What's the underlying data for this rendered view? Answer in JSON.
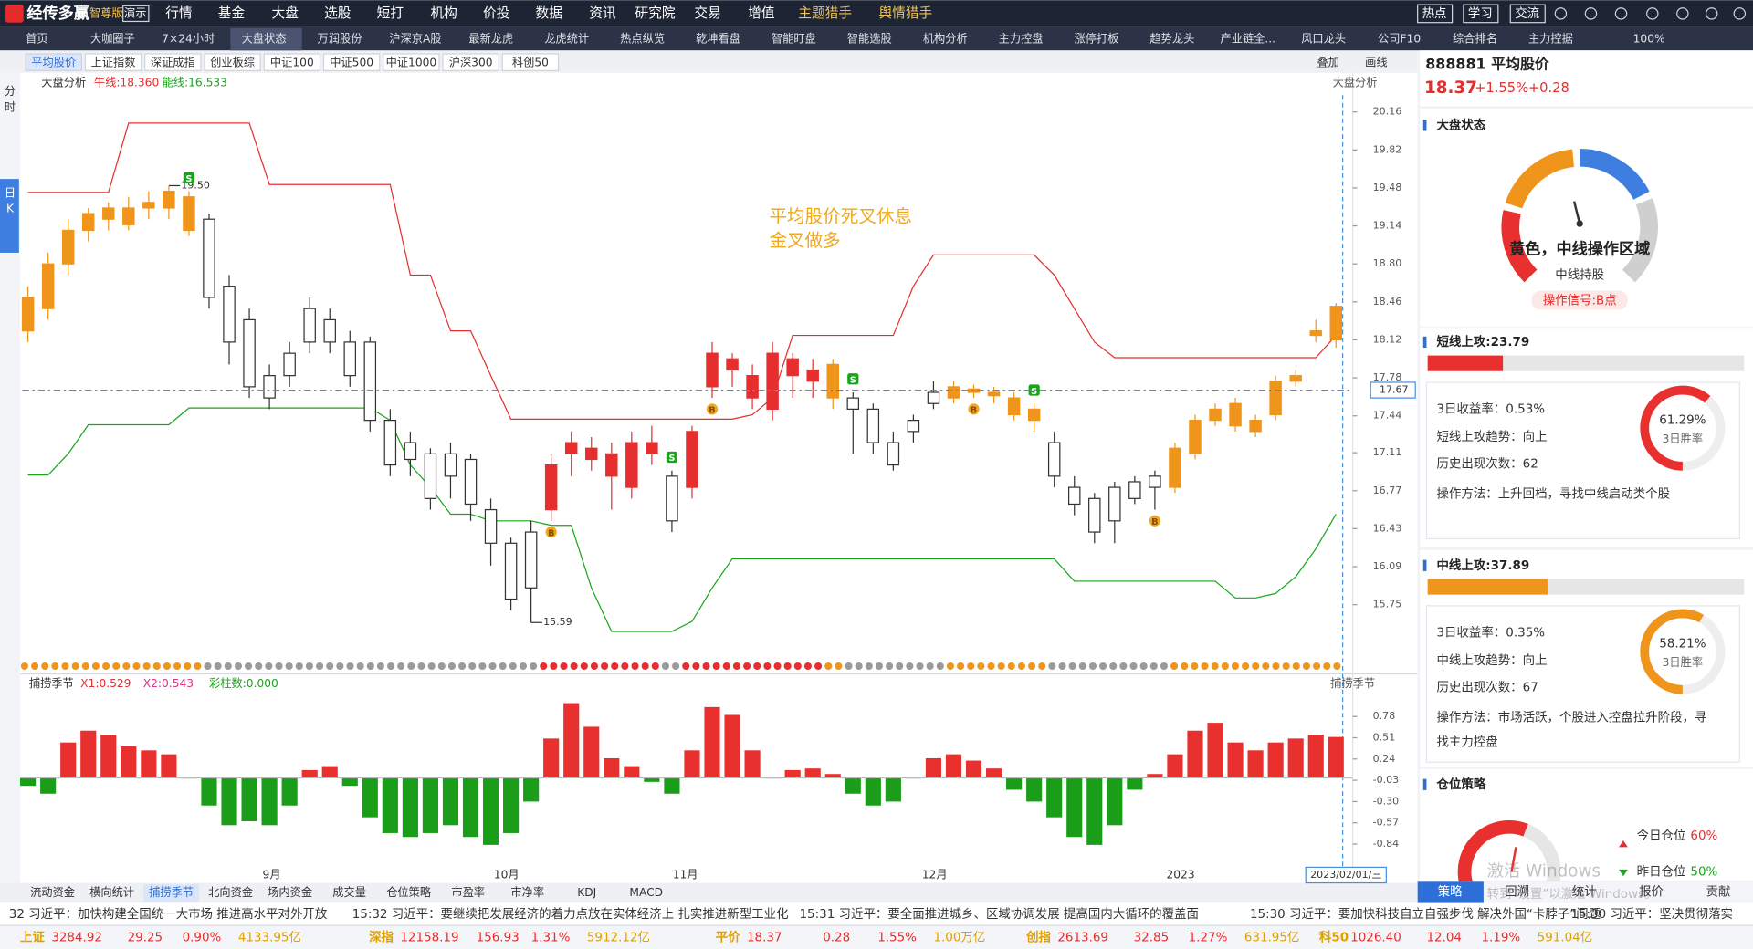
{
  "top_menu": {
    "logo": "经传多赢",
    "edition": "智尊版",
    "demo": "演示",
    "items": [
      "行情",
      "基金",
      "大盘",
      "选股",
      "短打",
      "机构",
      "价投",
      "数据",
      "资讯",
      "研究院",
      "交易",
      "增值",
      "主题猎手",
      "舆情猎手"
    ],
    "right": [
      "热点",
      "学习",
      "交流"
    ]
  },
  "nav_tabs": {
    "items": [
      "首页",
      "大咖圈子",
      "7×24小时",
      "大盘状态",
      "万润股份",
      "沪深京A股",
      "最新龙虎",
      "龙虎统计",
      "热点纵览",
      "乾坤看盘",
      "智能盯盘",
      "智能选股",
      "机构分析",
      "主力控盘",
      "涨停打板",
      "趋势龙头",
      "产业链全...",
      "风口龙头",
      "公司F10",
      "综合排名",
      "主力控据"
    ],
    "zoom": "100%"
  },
  "index_tabs": {
    "items": [
      "平均股价",
      "上证指数",
      "深证成指",
      "创业板综",
      "中证100",
      "中证500",
      "中证1000",
      "沪深300",
      "科创50"
    ],
    "overlay": "叠加",
    "draw": "画线"
  },
  "side_tabs": [
    "分时",
    "日K"
  ],
  "kline": {
    "title": "大盘分析",
    "bull": "牛线:18.360",
    "bear": "能线:16.533",
    "corner": "大盘分析",
    "annotation": [
      "平均股价死叉休息",
      "金叉做多"
    ],
    "ylim": [
      15.41,
      20.31
    ],
    "yticks": [
      20.16,
      19.82,
      19.48,
      19.14,
      {
        "value": 18.8,
        "label": "18.80"
      },
      18.46,
      18.12,
      17.78,
      17.44,
      17.11,
      16.77,
      16.43,
      16.09,
      15.75
    ],
    "current_price": 17.67,
    "high": {
      "value": 19.5,
      "label": "19.50"
    },
    "low": 15.59,
    "palette": {
      "o": "#f0951c",
      "r": "#e62e2e",
      "w": "#ffffff"
    },
    "candles": [
      [
        18.2,
        18.6,
        18.1,
        18.5,
        "o"
      ],
      [
        18.4,
        18.9,
        18.3,
        18.8,
        "o"
      ],
      [
        18.8,
        19.2,
        18.7,
        19.1,
        "o"
      ],
      [
        19.1,
        19.3,
        19.0,
        19.25,
        "o"
      ],
      [
        19.3,
        19.35,
        19.1,
        19.2,
        "o"
      ],
      [
        19.15,
        19.4,
        19.1,
        19.3,
        "o"
      ],
      [
        19.3,
        19.45,
        19.2,
        19.35,
        "o"
      ],
      [
        19.3,
        19.5,
        19.2,
        19.45,
        "o"
      ],
      [
        19.4,
        19.45,
        19.05,
        19.1,
        "o"
      ],
      [
        19.2,
        19.25,
        18.4,
        18.5,
        "w"
      ],
      [
        18.6,
        18.7,
        17.9,
        18.1,
        "w"
      ],
      [
        18.3,
        18.4,
        17.6,
        17.7,
        "w"
      ],
      [
        17.8,
        17.9,
        17.5,
        17.6,
        "w"
      ],
      [
        17.8,
        18.1,
        17.7,
        18.0,
        "w"
      ],
      [
        18.1,
        18.5,
        18.0,
        18.4,
        "w"
      ],
      [
        18.3,
        18.4,
        18.0,
        18.1,
        "w"
      ],
      [
        18.1,
        18.2,
        17.7,
        17.8,
        "w"
      ],
      [
        18.1,
        18.15,
        17.3,
        17.4,
        "w"
      ],
      [
        17.4,
        17.5,
        16.9,
        17.0,
        "w"
      ],
      [
        17.2,
        17.3,
        16.9,
        17.05,
        "w"
      ],
      [
        17.1,
        17.15,
        16.6,
        16.7,
        "w"
      ],
      [
        16.9,
        17.2,
        16.7,
        17.1,
        "w"
      ],
      [
        17.05,
        17.1,
        16.5,
        16.65,
        "w"
      ],
      [
        16.6,
        16.7,
        16.1,
        16.3,
        "w"
      ],
      [
        16.3,
        16.35,
        15.7,
        15.8,
        "w"
      ],
      [
        15.9,
        16.5,
        15.59,
        16.4,
        "w"
      ],
      [
        16.6,
        17.1,
        16.5,
        17.0,
        "r"
      ],
      [
        17.2,
        17.3,
        16.9,
        17.1,
        "r"
      ],
      [
        17.05,
        17.25,
        16.95,
        17.15,
        "r"
      ],
      [
        17.1,
        17.2,
        16.6,
        16.9,
        "r"
      ],
      [
        16.8,
        17.3,
        16.7,
        17.2,
        "r"
      ],
      [
        17.2,
        17.35,
        17.0,
        17.1,
        "r"
      ],
      [
        16.9,
        16.95,
        16.4,
        16.5,
        "w"
      ],
      [
        16.8,
        17.35,
        16.7,
        17.3,
        "r"
      ],
      [
        17.7,
        18.1,
        17.6,
        18.0,
        "r"
      ],
      [
        17.95,
        18.0,
        17.7,
        17.85,
        "r"
      ],
      [
        17.6,
        17.9,
        17.5,
        17.8,
        "r"
      ],
      [
        17.5,
        18.1,
        17.4,
        18.0,
        "r"
      ],
      [
        17.95,
        18.0,
        17.6,
        17.8,
        "r"
      ],
      [
        17.75,
        17.95,
        17.6,
        17.85,
        "r"
      ],
      [
        17.9,
        17.95,
        17.5,
        17.6,
        "o"
      ],
      [
        17.6,
        17.65,
        17.1,
        17.5,
        "w"
      ],
      [
        17.5,
        17.55,
        17.1,
        17.2,
        "w"
      ],
      [
        17.0,
        17.3,
        16.95,
        17.2,
        "w"
      ],
      [
        17.3,
        17.45,
        17.2,
        17.4,
        "w"
      ],
      [
        17.55,
        17.75,
        17.5,
        17.65,
        "w"
      ],
      [
        17.7,
        17.75,
        17.55,
        17.6,
        "o"
      ],
      [
        17.65,
        17.72,
        17.6,
        17.68,
        "o"
      ],
      [
        17.65,
        17.7,
        17.55,
        17.62,
        "o"
      ],
      [
        17.6,
        17.65,
        17.4,
        17.45,
        "o"
      ],
      [
        17.5,
        17.55,
        17.3,
        17.4,
        "o"
      ],
      [
        17.2,
        17.3,
        16.8,
        16.9,
        "w"
      ],
      [
        16.8,
        16.9,
        16.55,
        16.65,
        "w"
      ],
      [
        16.7,
        16.75,
        16.3,
        16.4,
        "w"
      ],
      [
        16.5,
        16.85,
        16.3,
        16.8,
        "w"
      ],
      [
        16.85,
        16.9,
        16.65,
        16.7,
        "w"
      ],
      [
        16.8,
        16.95,
        16.6,
        16.9,
        "w"
      ],
      [
        16.8,
        17.2,
        16.75,
        17.15,
        "o"
      ],
      [
        17.1,
        17.45,
        17.05,
        17.4,
        "o"
      ],
      [
        17.4,
        17.55,
        17.35,
        17.5,
        "o"
      ],
      [
        17.55,
        17.6,
        17.3,
        17.35,
        "o"
      ],
      [
        17.4,
        17.45,
        17.25,
        17.3,
        "o"
      ],
      [
        17.45,
        17.8,
        17.4,
        17.75,
        "o"
      ],
      [
        17.75,
        17.85,
        17.7,
        17.8,
        "o"
      ],
      [
        18.16,
        18.3,
        18.1,
        18.2,
        "o"
      ],
      [
        18.42,
        18.45,
        18.05,
        18.12,
        "o"
      ]
    ],
    "bull_line": [
      19.44,
      19.44,
      19.44,
      19.44,
      19.44,
      20.06,
      20.06,
      20.06,
      20.06,
      20.06,
      20.06,
      20.06,
      19.51,
      19.51,
      19.51,
      19.51,
      19.51,
      19.51,
      19.51,
      18.7,
      18.7,
      18.2,
      18.2,
      17.8,
      17.41,
      17.41,
      17.41,
      17.41,
      17.41,
      17.41,
      17.41,
      17.41,
      17.41,
      17.41,
      17.41,
      17.41,
      17.45,
      17.6,
      18.16,
      18.16,
      18.16,
      18.16,
      18.16,
      18.16,
      18.6,
      18.88,
      18.88,
      18.88,
      18.88,
      18.88,
      18.88,
      18.7,
      18.4,
      18.1,
      17.96,
      17.96,
      17.96,
      17.96,
      17.96,
      17.96,
      17.96,
      17.96,
      17.96,
      17.96,
      17.96,
      18.16
    ],
    "bear_line": [
      16.91,
      16.91,
      17.1,
      17.36,
      17.36,
      17.36,
      17.36,
      17.36,
      17.51,
      17.51,
      17.51,
      17.51,
      17.51,
      17.51,
      17.51,
      17.51,
      17.51,
      17.51,
      17.4,
      17.0,
      16.8,
      16.56,
      16.56,
      16.5,
      16.5,
      16.5,
      16.46,
      16.46,
      15.9,
      15.51,
      15.51,
      15.51,
      15.51,
      15.6,
      15.9,
      16.16,
      16.16,
      16.16,
      16.16,
      16.16,
      16.16,
      16.16,
      16.16,
      16.16,
      16.16,
      16.16,
      16.16,
      16.16,
      16.16,
      16.16,
      16.16,
      16.16,
      15.96,
      15.96,
      15.96,
      15.96,
      15.96,
      15.96,
      15.96,
      15.96,
      15.81,
      15.81,
      15.85,
      16.0,
      16.25,
      16.56
    ],
    "bull_color": "#e62e2e",
    "bear_color": "#19a519",
    "signals": [
      {
        "label": "S",
        "candle": 8
      },
      {
        "label": "B",
        "candle": 26
      },
      {
        "label": "S",
        "candle": 32
      },
      {
        "label": "B",
        "candle": 34
      },
      {
        "label": "S",
        "candle": 41
      },
      {
        "label": "B",
        "candle": 47
      },
      {
        "label": "S",
        "candle": 50
      },
      {
        "label": "B",
        "candle": 56
      }
    ],
    "xlabels": [
      "9月",
      "10月",
      "11月",
      "12月",
      "2023"
    ],
    "cursor_date": "2023/02/01/三"
  },
  "indicator": {
    "title": "捕捞季节",
    "x1": "X1:0.529",
    "x2": "X2:0.543",
    "bars_count": "彩柱数:0.000",
    "corner": "捕捞季节",
    "ylim": [
      -1.12,
      1.15
    ],
    "yticks": [
      0.78,
      0.51,
      0.24,
      -0.03,
      {
        "value": -0.3,
        "label": "-0.30"
      },
      -0.57,
      -0.84
    ],
    "up_color": "#e8312f",
    "down_color": "#1a9e1a",
    "values": [
      -0.1,
      -0.2,
      0.45,
      0.6,
      0.55,
      0.4,
      0.35,
      0.3,
      0.0,
      -0.35,
      -0.6,
      -0.55,
      -0.6,
      -0.35,
      0.1,
      0.15,
      -0.1,
      -0.5,
      -0.7,
      -0.75,
      -0.7,
      -0.6,
      -0.75,
      -0.85,
      -0.7,
      -0.3,
      0.5,
      0.95,
      0.65,
      0.25,
      0.15,
      -0.05,
      -0.2,
      0.35,
      0.9,
      0.8,
      0.35,
      0.0,
      0.1,
      0.12,
      0.05,
      -0.2,
      -0.35,
      -0.3,
      0.0,
      0.25,
      0.3,
      0.22,
      0.12,
      -0.15,
      -0.3,
      -0.5,
      -0.75,
      -0.85,
      -0.6,
      -0.15,
      0.05,
      0.3,
      0.6,
      0.7,
      0.45,
      0.35,
      0.45,
      0.5,
      0.55,
      0.52
    ]
  },
  "bottom_tabs": [
    "流动资金",
    "横向统计",
    "捕捞季节",
    "北向资金",
    "场内资金",
    "成交量",
    "仓位策略",
    "市盈率",
    "市净率",
    "KDJ",
    "MACD"
  ],
  "news": [
    "32 习近平：加快构建全国统一大市场 推进高水平对外开放",
    "15:32 习近平：要继续把发展经济的着力点放在实体经济上 扎实推进新型工业化",
    "15:31 习近平：要全面推进城乡、区域协调发展 提高国内大循环的覆盖面",
    "15:30 习近平：要加快科技自立自强步伐 解决外国“卡脖子”问题",
    "15:30 习近平：坚决贯彻落实"
  ],
  "status": [
    {
      "name": "上证",
      "price": "3284.92",
      "change": "29.25",
      "pct": "0.90%",
      "amount": "4133.95亿"
    },
    {
      "name": "深指",
      "price": "12158.19",
      "change": "156.93",
      "pct": "1.31%",
      "amount": "5912.12亿"
    },
    {
      "name": "平价",
      "price": "18.37",
      "change": "0.28",
      "pct": "1.55%",
      "amount": "1.00万亿"
    },
    {
      "name": "创指",
      "price": "2613.69",
      "change": "32.85",
      "pct": "1.27%",
      "amount": "631.95亿"
    },
    {
      "name": "科50",
      "price": "1026.40",
      "change": "12.04",
      "pct": "1.19%",
      "amount": "591.04亿"
    }
  ],
  "quote": {
    "code": "888881 平均股价",
    "price": "18.37",
    "pct": "+1.55%",
    "change": "+0.28"
  },
  "market_state": {
    "title": "大盘状态",
    "status": "黄色，中线操作区域",
    "hold": "中线持股",
    "signal": "操作信号:B点"
  },
  "short_attack": {
    "label": "短线上攻:23.79",
    "value": 23.79,
    "rows": [
      "3日收益率：0.53%",
      "短线上攻趋势：向上",
      "历史出现次数：62",
      "操作方法：上升回档，寻找中线启动类个股"
    ],
    "win_rate": {
      "value": 61.29,
      "label": "61.29%"
    },
    "win_caption": "3日胜率"
  },
  "mid_attack": {
    "label": "中线上攻:37.89",
    "value": 37.89,
    "rows": [
      "3日收益率：0.35%",
      "中线上攻趋势：向上",
      "历史出现次数：67",
      "操作方法：市场活跃，个股进入控盘拉升阶段，寻",
      "找主力控盘"
    ],
    "win_rate": {
      "value": 58.21,
      "label": "58.21%"
    },
    "win_caption": "3日胜率"
  },
  "position": {
    "title": "仓位策略",
    "today": "今日仓位",
    "today_value": "60%",
    "yesterday": "昨日仓位",
    "yesterday_value": "50%"
  },
  "panel_tabs": [
    "策略",
    "回溯",
    "统计",
    "报价",
    "贡献"
  ],
  "watermark": [
    "激活 Windows",
    "转到“设置”以激活 Windows。"
  ]
}
